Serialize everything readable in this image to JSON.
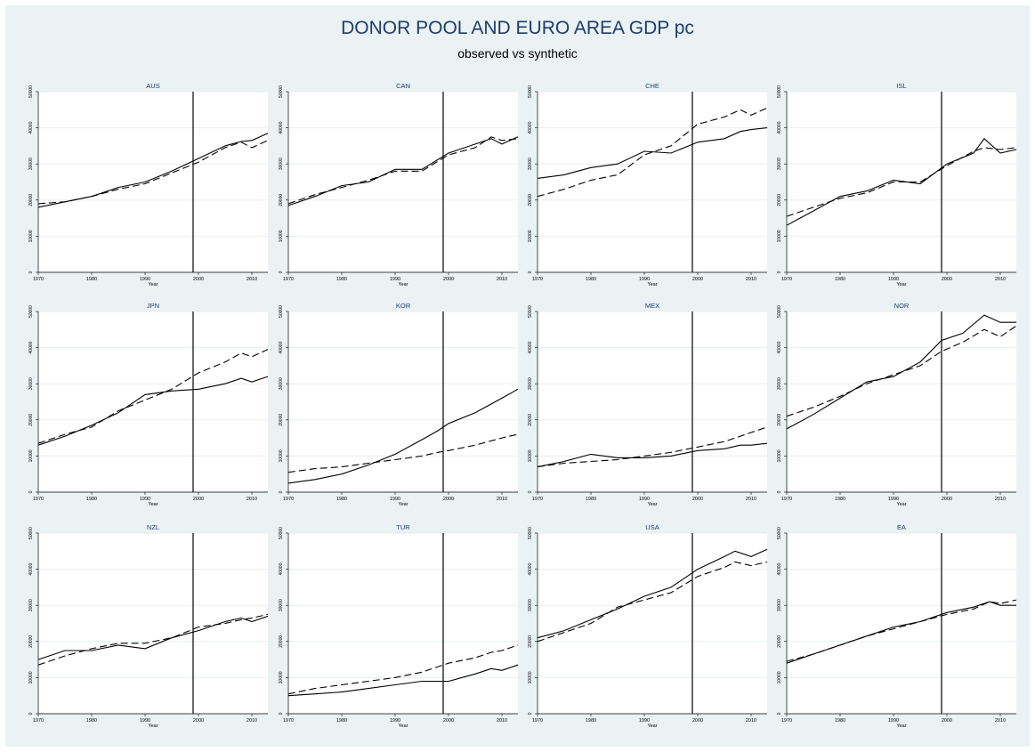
{
  "title": "DONOR POOL AND EURO AREA GDP pc",
  "subtitle": "observed vs synthetic",
  "colors": {
    "background": "#eaf2f3",
    "panel_title": "#1e3c6e",
    "line": "#000000"
  },
  "chart_data": [
    {
      "type": "line",
      "title": "AUS",
      "xlabel": "Year",
      "xlim": [
        1970,
        2013
      ],
      "ylim": [
        0,
        50000
      ],
      "xticks": [
        "1970",
        "1980",
        "1990",
        "2000",
        "2010"
      ],
      "yticks": [
        "0",
        "10000",
        "20000",
        "30000",
        "40000",
        "50000"
      ],
      "treatment_year": 1999,
      "x": [
        1970,
        1975,
        1980,
        1985,
        1990,
        1995,
        2000,
        2005,
        2008,
        2010,
        2013
      ],
      "series": [
        {
          "values": [
            18000,
            19500,
            21000,
            23500,
            25000,
            28000,
            31500,
            35000,
            36200,
            36500,
            38500
          ]
        },
        {
          "values": [
            19000,
            19500,
            21000,
            23000,
            24500,
            27500,
            30500,
            34500,
            36000,
            34500,
            36500
          ]
        }
      ]
    },
    {
      "type": "line",
      "title": "CAN",
      "xlabel": "Year",
      "xlim": [
        1970,
        2013
      ],
      "ylim": [
        0,
        50000
      ],
      "xticks": [
        "1970",
        "1980",
        "1990",
        "2000",
        "2010"
      ],
      "yticks": [
        "0",
        "10000",
        "20000",
        "30000",
        "40000",
        "50000"
      ],
      "treatment_year": 1999,
      "x": [
        1970,
        1975,
        1980,
        1985,
        1990,
        1995,
        2000,
        2005,
        2008,
        2010,
        2013
      ],
      "series": [
        {
          "values": [
            18500,
            21000,
            24000,
            25000,
            28500,
            28500,
            33000,
            35500,
            37000,
            35500,
            37500
          ]
        },
        {
          "values": [
            19000,
            21500,
            23500,
            25500,
            28000,
            28000,
            32500,
            34500,
            37500,
            36500,
            37000
          ]
        }
      ]
    },
    {
      "type": "line",
      "title": "CHE",
      "xlabel": "Year",
      "xlim": [
        1970,
        2013
      ],
      "ylim": [
        0,
        50000
      ],
      "xticks": [
        "1970",
        "1980",
        "1990",
        "2000",
        "2010"
      ],
      "yticks": [
        "0",
        "10000",
        "20000",
        "30000",
        "40000",
        "50000"
      ],
      "treatment_year": 1999,
      "x": [
        1970,
        1975,
        1980,
        1985,
        1990,
        1995,
        2000,
        2005,
        2008,
        2010,
        2013
      ],
      "series": [
        {
          "values": [
            26000,
            27000,
            29000,
            30000,
            33500,
            33000,
            36000,
            37000,
            39000,
            39500,
            40000
          ]
        },
        {
          "values": [
            21000,
            23000,
            25500,
            27000,
            32500,
            35000,
            41000,
            43000,
            45000,
            43500,
            45500
          ]
        }
      ]
    },
    {
      "type": "line",
      "title": "ISL",
      "xlabel": "Year",
      "xlim": [
        1970,
        2013
      ],
      "ylim": [
        0,
        50000
      ],
      "xticks": [
        "1970",
        "1980",
        "1990",
        "2000",
        "2010"
      ],
      "yticks": [
        "0",
        "10000",
        "20000",
        "30000",
        "40000",
        "50000"
      ],
      "treatment_year": 1999,
      "x": [
        1970,
        1975,
        1980,
        1985,
        1990,
        1995,
        2000,
        2005,
        2007,
        2010,
        2013
      ],
      "series": [
        {
          "values": [
            13000,
            17000,
            21000,
            22500,
            25500,
            24500,
            30000,
            33000,
            37000,
            33000,
            34000
          ]
        },
        {
          "values": [
            15500,
            18000,
            20500,
            22000,
            25000,
            25000,
            29500,
            33500,
            34500,
            34000,
            34500
          ]
        }
      ]
    },
    {
      "type": "line",
      "title": "JPN",
      "xlabel": "Year",
      "xlim": [
        1970,
        2013
      ],
      "ylim": [
        0,
        50000
      ],
      "xticks": [
        "1970",
        "1980",
        "1990",
        "2000",
        "2010"
      ],
      "yticks": [
        "0",
        "10000",
        "20000",
        "30000",
        "40000",
        "50000"
      ],
      "treatment_year": 1999,
      "x": [
        1970,
        1975,
        1980,
        1985,
        1990,
        1995,
        2000,
        2005,
        2008,
        2010,
        2013
      ],
      "series": [
        {
          "values": [
            13000,
            15500,
            18500,
            22000,
            27000,
            28000,
            28500,
            30000,
            31500,
            30500,
            32000
          ]
        },
        {
          "values": [
            13500,
            16000,
            18000,
            22500,
            25500,
            28500,
            33000,
            36000,
            38500,
            37500,
            39500
          ]
        }
      ]
    },
    {
      "type": "line",
      "title": "KOR",
      "xlabel": "Year",
      "xlim": [
        1970,
        2013
      ],
      "ylim": [
        0,
        50000
      ],
      "xticks": [
        "1970",
        "1980",
        "1990",
        "2000",
        "2010"
      ],
      "yticks": [
        "0",
        "10000",
        "20000",
        "30000",
        "40000",
        "50000"
      ],
      "treatment_year": 1999,
      "x": [
        1970,
        1975,
        1980,
        1985,
        1990,
        1995,
        1998,
        2000,
        2005,
        2010,
        2013
      ],
      "series": [
        {
          "values": [
            2500,
            3500,
            5000,
            7500,
            10500,
            14500,
            17000,
            19000,
            22000,
            26000,
            28500
          ]
        },
        {
          "values": [
            5500,
            6500,
            7000,
            8000,
            9000,
            10000,
            11000,
            11500,
            13000,
            15000,
            16000
          ]
        }
      ]
    },
    {
      "type": "line",
      "title": "MEX",
      "xlabel": "Year",
      "xlim": [
        1970,
        2013
      ],
      "ylim": [
        0,
        50000
      ],
      "xticks": [
        "1970",
        "1980",
        "1990",
        "2000",
        "2010"
      ],
      "yticks": [
        "0",
        "10000",
        "20000",
        "30000",
        "40000",
        "50000"
      ],
      "treatment_year": 1999,
      "x": [
        1970,
        1975,
        1980,
        1985,
        1990,
        1995,
        2000,
        2005,
        2008,
        2010,
        2013
      ],
      "series": [
        {
          "values": [
            7000,
            8500,
            10500,
            9500,
            9500,
            10000,
            11500,
            12000,
            13000,
            13000,
            13500
          ]
        },
        {
          "values": [
            7000,
            8000,
            8500,
            9000,
            10000,
            11000,
            12500,
            14000,
            15500,
            16500,
            18000
          ]
        }
      ]
    },
    {
      "type": "line",
      "title": "NOR",
      "xlabel": "Year",
      "xlim": [
        1970,
        2013
      ],
      "ylim": [
        0,
        50000
      ],
      "xticks": [
        "1970",
        "1980",
        "1990",
        "2000",
        "2010"
      ],
      "yticks": [
        "0",
        "10000",
        "20000",
        "30000",
        "40000",
        "50000"
      ],
      "treatment_year": 1999,
      "x": [
        1970,
        1975,
        1980,
        1985,
        1990,
        1995,
        1999,
        2003,
        2007,
        2010,
        2013
      ],
      "series": [
        {
          "values": [
            17500,
            21500,
            26000,
            30500,
            32000,
            36000,
            42000,
            44000,
            49000,
            47000,
            47000
          ]
        },
        {
          "values": [
            21000,
            23500,
            26500,
            30000,
            32500,
            35000,
            39000,
            41500,
            45000,
            43000,
            46000
          ]
        }
      ]
    },
    {
      "type": "line",
      "title": "NZL",
      "xlabel": "Year",
      "xlim": [
        1970,
        2013
      ],
      "ylim": [
        0,
        50000
      ],
      "xticks": [
        "1970",
        "1980",
        "1990",
        "2000",
        "2010"
      ],
      "yticks": [
        "0",
        "10000",
        "20000",
        "30000",
        "40000",
        "50000"
      ],
      "treatment_year": 1999,
      "x": [
        1970,
        1975,
        1980,
        1985,
        1990,
        1995,
        2000,
        2005,
        2008,
        2010,
        2013
      ],
      "series": [
        {
          "values": [
            15000,
            17500,
            17500,
            19000,
            18000,
            21000,
            23000,
            25500,
            26500,
            25500,
            27000
          ]
        },
        {
          "values": [
            13500,
            16000,
            18000,
            19500,
            19500,
            21000,
            24000,
            25000,
            26000,
            26500,
            27500
          ]
        }
      ]
    },
    {
      "type": "line",
      "title": "TUR",
      "xlabel": "Year",
      "xlim": [
        1970,
        2013
      ],
      "ylim": [
        0,
        50000
      ],
      "xticks": [
        "1970",
        "1980",
        "1990",
        "2000",
        "2010"
      ],
      "yticks": [
        "0",
        "10000",
        "20000",
        "30000",
        "40000",
        "50000"
      ],
      "treatment_year": 1999,
      "x": [
        1970,
        1975,
        1980,
        1985,
        1990,
        1995,
        2000,
        2005,
        2008,
        2010,
        2013
      ],
      "series": [
        {
          "values": [
            5000,
            5500,
            6000,
            7000,
            8000,
            9000,
            9000,
            11000,
            12500,
            12000,
            13500
          ]
        },
        {
          "values": [
            5500,
            7000,
            8000,
            9000,
            10000,
            11500,
            14000,
            15500,
            17000,
            17500,
            19000
          ]
        }
      ]
    },
    {
      "type": "line",
      "title": "USA",
      "xlabel": "Year",
      "xlim": [
        1970,
        2013
      ],
      "ylim": [
        0,
        50000
      ],
      "xticks": [
        "1970",
        "1980",
        "1990",
        "2000",
        "2010"
      ],
      "yticks": [
        "0",
        "10000",
        "20000",
        "30000",
        "40000",
        "50000"
      ],
      "treatment_year": 1999,
      "x": [
        1970,
        1975,
        1980,
        1985,
        1990,
        1995,
        2000,
        2005,
        2007,
        2010,
        2013
      ],
      "series": [
        {
          "values": [
            21000,
            23000,
            26000,
            29000,
            32500,
            35000,
            40000,
            43500,
            45000,
            43500,
            45500
          ]
        },
        {
          "values": [
            20000,
            22500,
            25000,
            29500,
            31500,
            33500,
            38000,
            40500,
            42000,
            41000,
            42000
          ]
        }
      ]
    },
    {
      "type": "line",
      "title": "EA",
      "xlabel": "Year",
      "xlim": [
        1970,
        2013
      ],
      "ylim": [
        0,
        50000
      ],
      "xticks": [
        "1970",
        "1980",
        "1990",
        "2000",
        "2010"
      ],
      "yticks": [
        "0",
        "10000",
        "20000",
        "30000",
        "40000",
        "50000"
      ],
      "treatment_year": 1999,
      "x": [
        1970,
        1975,
        1980,
        1985,
        1990,
        1995,
        2000,
        2005,
        2008,
        2010,
        2013
      ],
      "series": [
        {
          "values": [
            14000,
            16500,
            19000,
            21500,
            24000,
            25500,
            28000,
            29500,
            31000,
            30000,
            30000
          ]
        },
        {
          "values": [
            14500,
            16500,
            19000,
            21500,
            23500,
            25500,
            27500,
            29000,
            31000,
            30500,
            31500
          ]
        }
      ]
    }
  ]
}
